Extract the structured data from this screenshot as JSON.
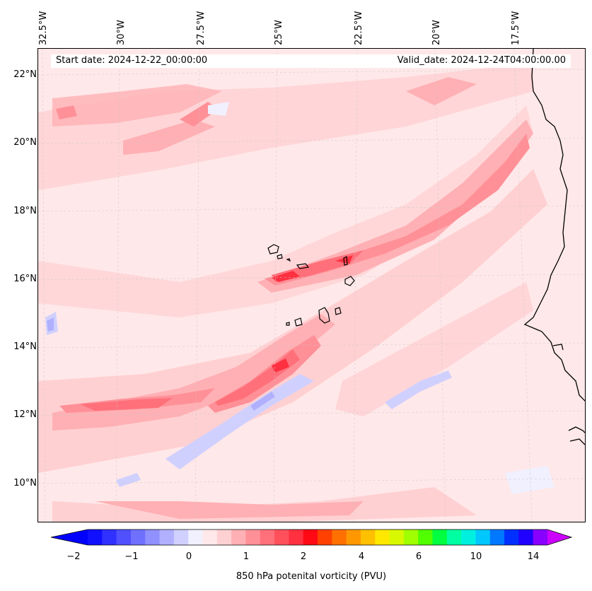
{
  "map": {
    "start_date": "Start date: 2024-12-22_00:00:00",
    "valid_date": "Valid_date: 2024-12-24T04:00:00.00",
    "lon_labels": [
      "32.5°W",
      "30°W",
      "27.5°W",
      "25°W",
      "22.5°W",
      "20°W",
      "17.5°W"
    ],
    "lat_labels": [
      "22°N",
      "20°N",
      "18°N",
      "16°N",
      "14°N",
      "12°N",
      "10°N"
    ]
  },
  "colorbar": {
    "title": "850 hPa potenital vorticity (PVU)",
    "tick_labels": [
      "−2",
      "−1",
      "0",
      "1",
      "2",
      "4",
      "6",
      "10",
      "14"
    ],
    "colors": [
      "#1010ff",
      "#3030ff",
      "#5050ff",
      "#7070ff",
      "#9090ff",
      "#b0b0ff",
      "#d0d0ff",
      "#f0f0ff",
      "#ffe8e9",
      "#ffd0d2",
      "#ffb0b4",
      "#ff9098",
      "#ff707a",
      "#ff505c",
      "#ff3040",
      "#ff0a14",
      "#ff4000",
      "#ff7000",
      "#ff9800",
      "#ffc000",
      "#ffe800",
      "#d8f800",
      "#a0ff00",
      "#50ff00",
      "#00ff40",
      "#00ffa0",
      "#00f0e0",
      "#00c8ff",
      "#0078ff",
      "#0030ff",
      "#2000ff",
      "#8800ff"
    ],
    "under_color": "#0000ff",
    "over_color": "#cc00ff"
  }
}
